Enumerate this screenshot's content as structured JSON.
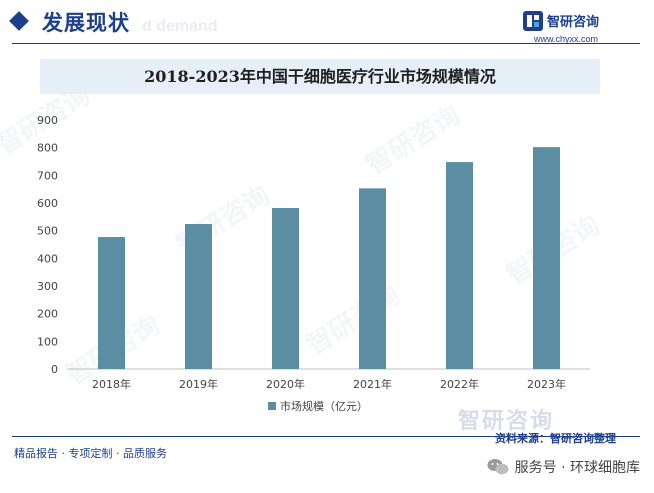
{
  "header": {
    "title": "发展现状",
    "ghost_text": "d demand"
  },
  "brand": {
    "name": "智研咨询",
    "url": "www.chyxx.com"
  },
  "chart_data": {
    "type": "bar",
    "title": "2018-2023年中国干细胞医疗行业市场规模情况",
    "categories": [
      "2018年",
      "2019年",
      "2020年",
      "2021年",
      "2022年",
      "2023年"
    ],
    "series": [
      {
        "name": "市场规模（亿元）",
        "values": [
          477,
          524,
          582,
          653,
          748,
          802
        ]
      }
    ],
    "ylim": [
      0,
      900
    ],
    "yticks": [
      0,
      100,
      200,
      300,
      400,
      500,
      600,
      700,
      800,
      900
    ],
    "legend": "bottom",
    "grid": false,
    "colors": {
      "bar": "#5b8ea3"
    }
  },
  "watermark": {
    "text": "智研咨询"
  },
  "footer": {
    "left_text": "精品报告 · 专项定制 · 品质服务",
    "source": "资料来源：智研咨询整理",
    "wechat": "服务号 · 环球细胞库"
  }
}
